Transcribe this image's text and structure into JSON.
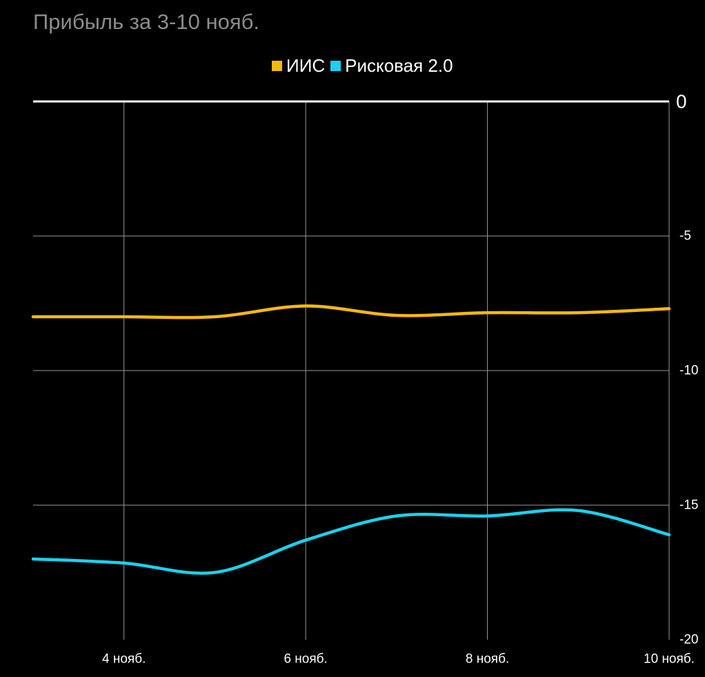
{
  "chart_data": {
    "type": "line",
    "title": "Прибыль за 3-10 нояб.",
    "x": [
      "3 нояб.",
      "4 нояб.",
      "5 нояб.",
      "6 нояб.",
      "7 нояб.",
      "8 нояб.",
      "9 нояб.",
      "10 нояб."
    ],
    "xticks": [
      "4 нояб.",
      "6 нояб.",
      "8 нояб.",
      "10 нояб."
    ],
    "yticks": [
      "0",
      "-5",
      "-10",
      "-15",
      "-20"
    ],
    "ylim": [
      -20,
      0
    ],
    "y_axis_position": "right",
    "grid": true,
    "legend_position": "top-center",
    "series": [
      {
        "name": "ИИС",
        "color": "#f5b90f",
        "values": [
          -8.0,
          -8.0,
          -8.0,
          -7.6,
          -7.95,
          -7.85,
          -7.85,
          -7.7
        ]
      },
      {
        "name": "Рисковая 2.0",
        "color": "#19d2ee",
        "values": [
          -17.0,
          -17.15,
          -17.5,
          -16.3,
          -15.4,
          -15.4,
          -15.2,
          -16.1
        ]
      }
    ],
    "zero_line_color": "#ffffff",
    "grid_color": "#9a9a9a"
  }
}
